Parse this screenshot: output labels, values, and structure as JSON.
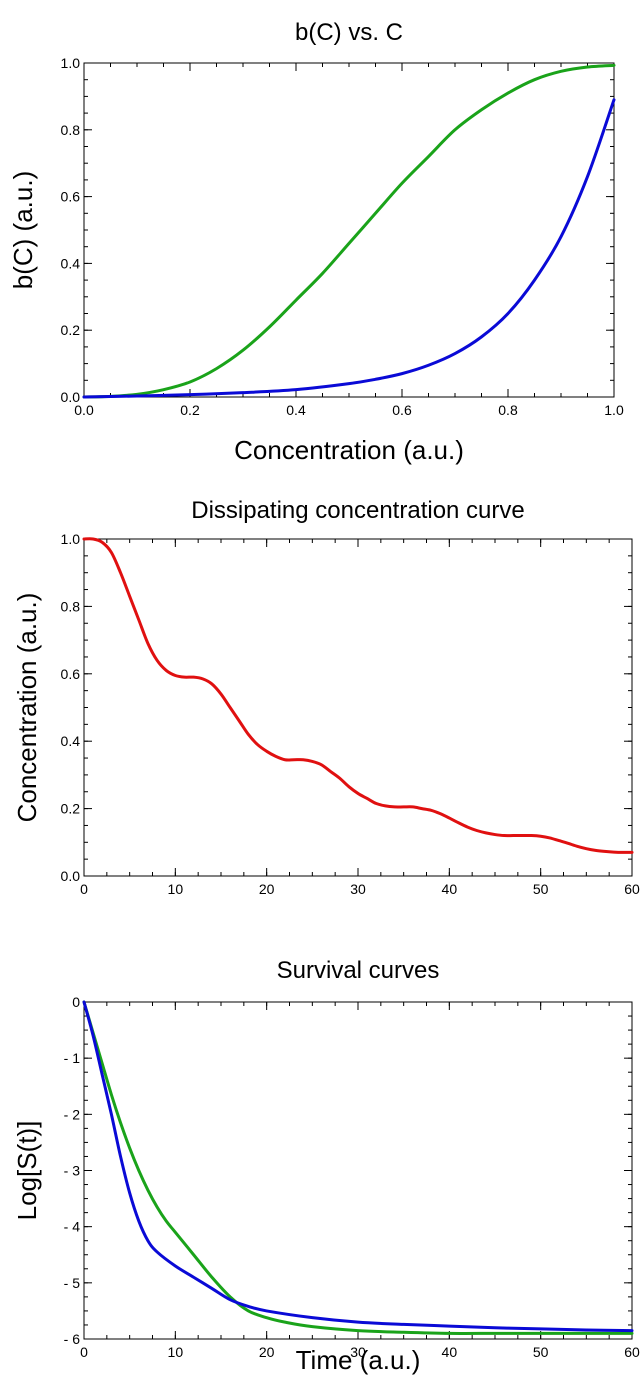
{
  "chart_data": [
    {
      "type": "line",
      "title": "b(C) vs. C",
      "xlabel": "Concentration (a.u.)",
      "ylabel": "b(C) (a.u.)",
      "xlim": [
        0,
        1
      ],
      "ylim": [
        0,
        1
      ],
      "xticks": [
        0,
        0.2,
        0.4,
        0.6,
        0.8,
        1
      ],
      "xtick_labels": [
        "0.0",
        "0.2",
        "0.4",
        "0.6",
        "0.8",
        "1.0"
      ],
      "yticks": [
        0,
        0.2,
        0.4,
        0.6,
        0.8,
        1
      ],
      "ytick_labels": [
        "0.0",
        "0.2",
        "0.4",
        "0.6",
        "0.8",
        "1.0"
      ],
      "grid": false,
      "series": [
        {
          "color": "#1aa31a",
          "x": [
            0,
            0.05,
            0.1,
            0.15,
            0.2,
            0.25,
            0.3,
            0.35,
            0.4,
            0.45,
            0.5,
            0.55,
            0.6,
            0.65,
            0.7,
            0.75,
            0.8,
            0.85,
            0.9,
            0.95,
            1.0
          ],
          "y": [
            0.0,
            0.002,
            0.008,
            0.022,
            0.045,
            0.085,
            0.14,
            0.21,
            0.29,
            0.37,
            0.46,
            0.55,
            0.64,
            0.72,
            0.8,
            0.86,
            0.91,
            0.95,
            0.975,
            0.988,
            0.993
          ]
        },
        {
          "color": "#0a0ad6",
          "x": [
            0,
            0.1,
            0.2,
            0.3,
            0.4,
            0.5,
            0.55,
            0.6,
            0.65,
            0.7,
            0.75,
            0.8,
            0.85,
            0.9,
            0.95,
            1.0
          ],
          "y": [
            0.0,
            0.003,
            0.007,
            0.013,
            0.022,
            0.04,
            0.053,
            0.07,
            0.095,
            0.13,
            0.18,
            0.25,
            0.35,
            0.48,
            0.66,
            0.89
          ]
        }
      ]
    },
    {
      "type": "line",
      "title": "Dissipating concentration curve",
      "xlabel": "",
      "ylabel": "Concentration (a.u.)",
      "xlim": [
        0,
        60
      ],
      "ylim": [
        0,
        1
      ],
      "xticks": [
        0,
        10,
        20,
        30,
        40,
        50,
        60
      ],
      "xtick_labels": [
        "0",
        "10",
        "20",
        "30",
        "40",
        "50",
        "60"
      ],
      "yticks": [
        0,
        0.2,
        0.4,
        0.6,
        0.8,
        1
      ],
      "ytick_labels": [
        "0.0",
        "0.2",
        "0.4",
        "0.6",
        "0.8",
        "1.0"
      ],
      "grid": false,
      "series": [
        {
          "color": "#e01010",
          "x": [
            0,
            1,
            2,
            3,
            4,
            5,
            6,
            7,
            8,
            9,
            10,
            11,
            12,
            13,
            14,
            15,
            16,
            17,
            18,
            19,
            20,
            21,
            22,
            23,
            24,
            25,
            26,
            27,
            28,
            29,
            30,
            31,
            32,
            33,
            34,
            35,
            36,
            37,
            38,
            39,
            40,
            41,
            42,
            43,
            44,
            45,
            46,
            47,
            48,
            49,
            50,
            51,
            52,
            53,
            54,
            55,
            56,
            57,
            58,
            59,
            60
          ],
          "y": [
            1.0,
            1.0,
            0.99,
            0.96,
            0.9,
            0.83,
            0.76,
            0.69,
            0.64,
            0.61,
            0.595,
            0.59,
            0.59,
            0.585,
            0.57,
            0.54,
            0.5,
            0.46,
            0.42,
            0.39,
            0.37,
            0.355,
            0.345,
            0.345,
            0.345,
            0.34,
            0.33,
            0.31,
            0.29,
            0.265,
            0.245,
            0.23,
            0.215,
            0.208,
            0.205,
            0.205,
            0.205,
            0.2,
            0.195,
            0.185,
            0.172,
            0.158,
            0.145,
            0.135,
            0.128,
            0.123,
            0.12,
            0.12,
            0.12,
            0.12,
            0.118,
            0.113,
            0.105,
            0.097,
            0.088,
            0.081,
            0.076,
            0.073,
            0.071,
            0.07,
            0.07
          ]
        }
      ]
    },
    {
      "type": "line",
      "title": "Survival curves",
      "xlabel": "Time (a.u.)",
      "ylabel": "Log[S(t)]",
      "xlim": [
        0,
        60
      ],
      "ylim": [
        -6,
        0
      ],
      "xticks": [
        0,
        10,
        20,
        30,
        40,
        50,
        60
      ],
      "xtick_labels": [
        "0",
        "10",
        "20",
        "30",
        "40",
        "50",
        "60"
      ],
      "yticks": [
        -6,
        -5,
        -4,
        -3,
        -2,
        -1,
        0
      ],
      "ytick_labels": [
        "- 6",
        "- 5",
        "- 4",
        "- 3",
        "- 2",
        "- 1",
        "0"
      ],
      "grid": false,
      "series": [
        {
          "color": "#1aa31a",
          "x": [
            0,
            1,
            2,
            3,
            4,
            5,
            6,
            7,
            8,
            9,
            10,
            12,
            14,
            16,
            18,
            20,
            22,
            25,
            30,
            35,
            40,
            45,
            50,
            55,
            60
          ],
          "y": [
            0.0,
            -0.55,
            -1.1,
            -1.65,
            -2.15,
            -2.6,
            -3.0,
            -3.35,
            -3.65,
            -3.9,
            -4.1,
            -4.5,
            -4.9,
            -5.25,
            -5.5,
            -5.62,
            -5.7,
            -5.78,
            -5.85,
            -5.88,
            -5.9,
            -5.9,
            -5.9,
            -5.9,
            -5.9
          ]
        },
        {
          "color": "#0a0ad6",
          "x": [
            0,
            1,
            2,
            3,
            4,
            5,
            6,
            7,
            8,
            10,
            12,
            14,
            16,
            18,
            20,
            25,
            30,
            35,
            40,
            45,
            50,
            55,
            60
          ],
          "y": [
            0.0,
            -0.6,
            -1.3,
            -2.0,
            -2.75,
            -3.4,
            -3.9,
            -4.25,
            -4.45,
            -4.7,
            -4.9,
            -5.1,
            -5.3,
            -5.42,
            -5.5,
            -5.62,
            -5.7,
            -5.74,
            -5.77,
            -5.8,
            -5.82,
            -5.84,
            -5.85
          ]
        }
      ]
    }
  ]
}
